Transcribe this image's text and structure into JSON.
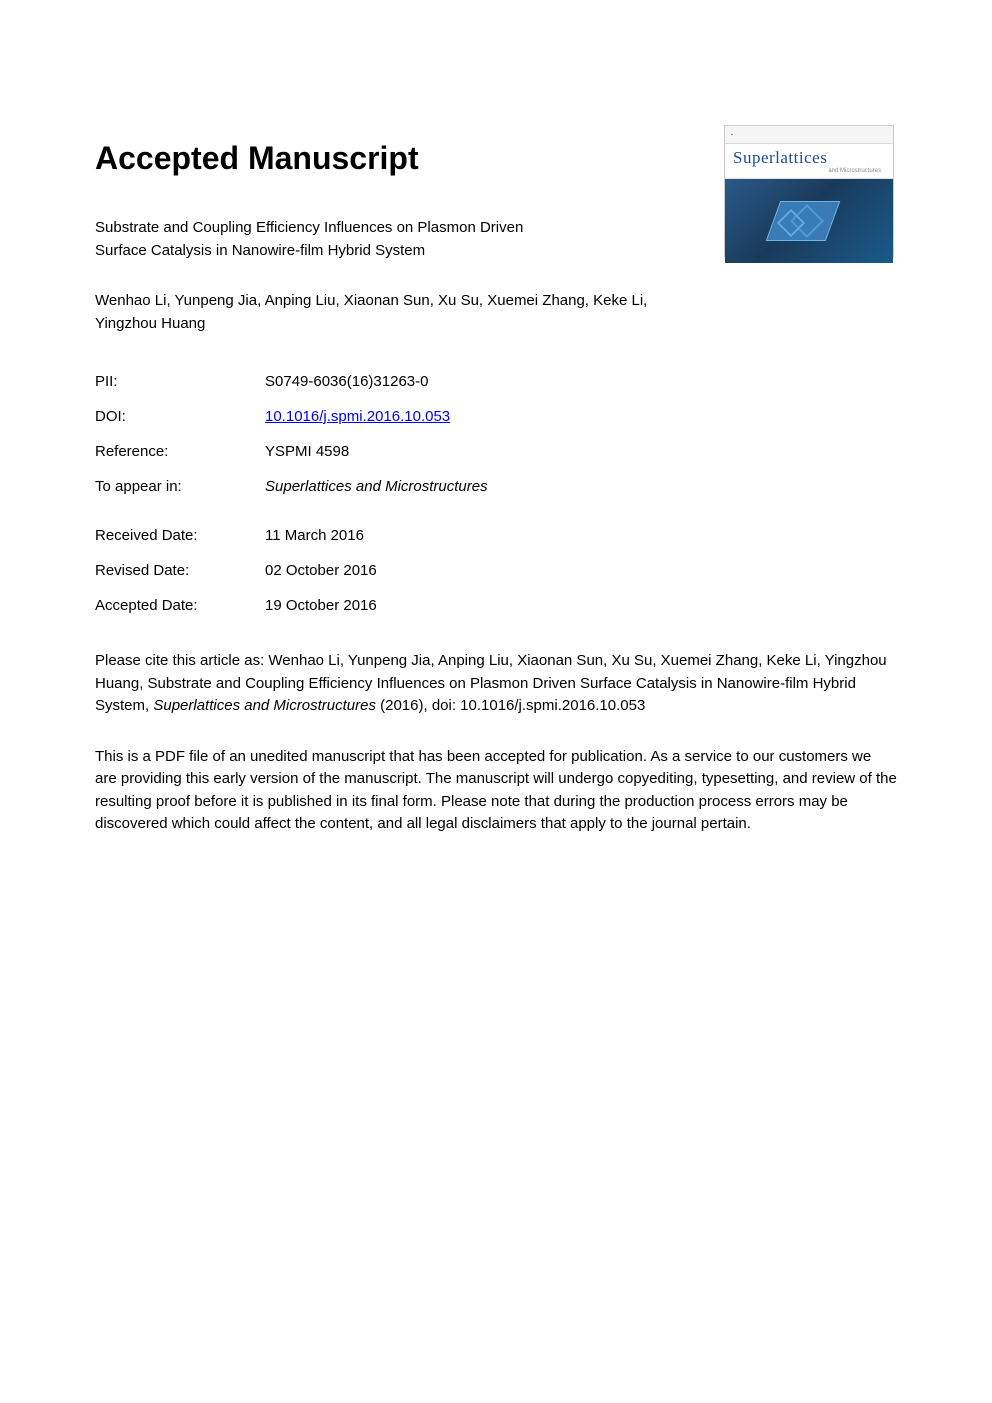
{
  "heading": "Accepted Manuscript",
  "article_title": "Substrate and Coupling Efficiency Influences on Plasmon Driven Surface Catalysis in Nanowire-film Hybrid System",
  "authors": "Wenhao Li, Yunpeng Jia, Anping Liu, Xiaonan Sun, Xu Su, Xuemei Zhang, Keke Li, Yingzhou Huang",
  "meta": {
    "pii_label": "PII:",
    "pii_value": "S0749-6036(16)31263-0",
    "doi_label": "DOI:",
    "doi_value": "10.1016/j.spmi.2016.10.053",
    "reference_label": "Reference:",
    "reference_value": "YSPMI 4598",
    "appear_label": "To appear in:",
    "appear_value": "Superlattices and Microstructures",
    "received_label": "Received Date:",
    "received_value": "11 March 2016",
    "revised_label": "Revised Date:",
    "revised_value": "02 October 2016",
    "accepted_label": "Accepted Date:",
    "accepted_value": "19 October 2016"
  },
  "citation": {
    "prefix": "Please cite this article as: Wenhao Li, Yunpeng Jia, Anping Liu, Xiaonan Sun, Xu Su, Xuemei Zhang, Keke Li, Yingzhou Huang, Substrate and Coupling Efficiency Influences on Plasmon Driven Surface Catalysis in Nanowire-film Hybrid System, ",
    "journal": "Superlattices and Microstructures",
    "suffix": " (2016), doi: 10.1016/j.spmi.2016.10.053"
  },
  "disclaimer": "This is a PDF file of an unedited manuscript that has been accepted for publication. As a service to our customers we are providing this early version of the manuscript. The manuscript will undergo copyediting, typesetting, and review of the resulting proof before it is published in its final form. Please note that during the production process errors may be discovered which could affect the content, and all legal disclaimers that apply to the journal pertain.",
  "cover": {
    "journal_main": "Superlattices",
    "journal_sub": "and Microstructures",
    "background_gradient": [
      "#2a5a8a",
      "#1a3a5a",
      "#1a5a8a"
    ],
    "shape_color": "#3a7ab5",
    "diamond_border": "#4a9ad5"
  },
  "colors": {
    "link": "#0000ee",
    "text": "#000000",
    "journal_blue": "#1a4d8f"
  },
  "typography": {
    "heading_size": 32,
    "body_size": 15
  }
}
